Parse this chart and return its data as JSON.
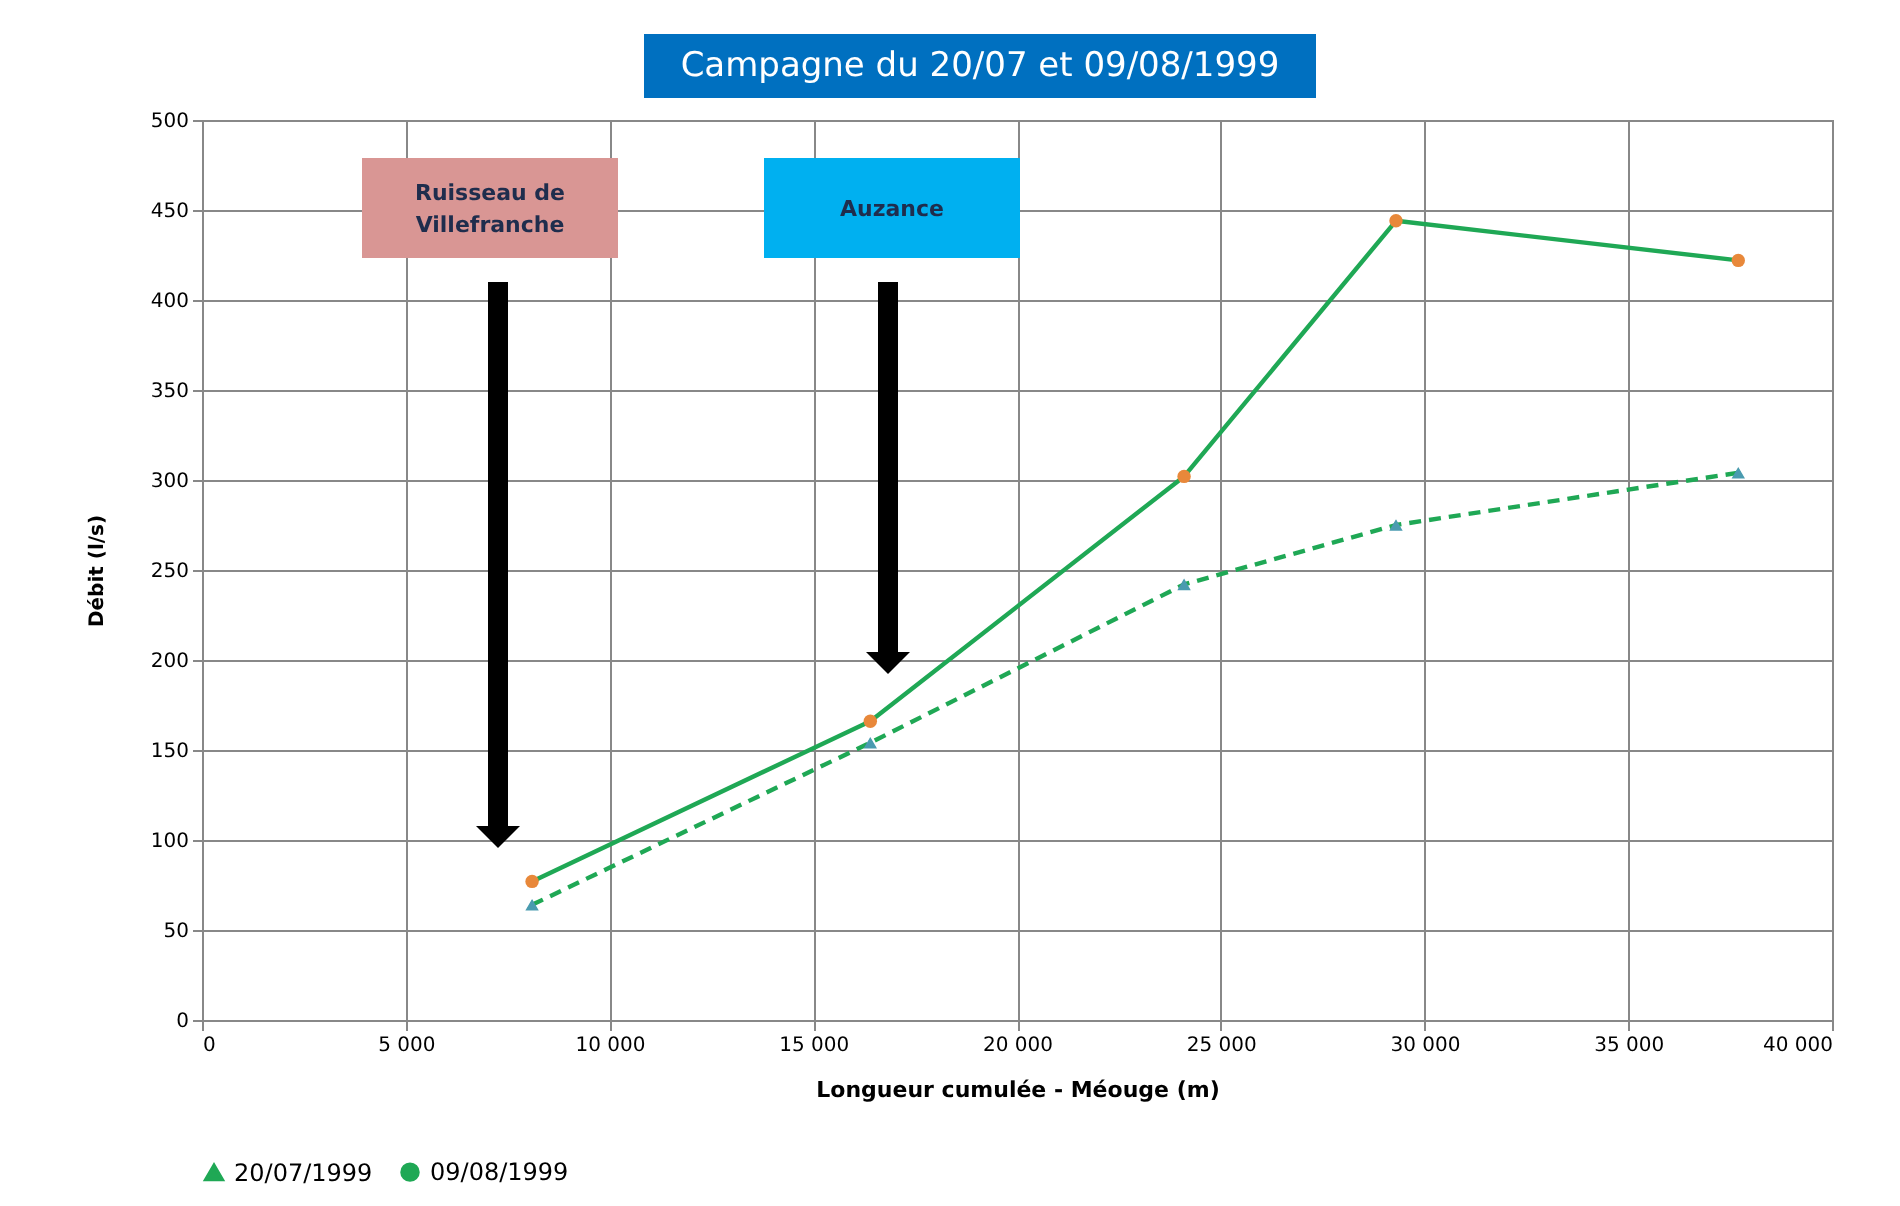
{
  "chart_data": {
    "type": "line",
    "title": "Campagne du 20/07 et 09/08/1999",
    "xlabel": "Longueur cumulée - Méouge (m)",
    "ylabel": "Débit (l/s)",
    "x": [
      8100,
      16400,
      24100,
      29300,
      37700
    ],
    "series": [
      {
        "name": "20/07/1999",
        "color": "#1fa855",
        "line_style": "dashed",
        "marker": "triangle",
        "colors": [
          "#4a9bb0",
          "#4a9bb0",
          "#4a9bb0",
          "#4a9bb0",
          "#4a9bb0"
        ],
        "values": [
          64,
          154,
          242,
          275,
          304
        ]
      },
      {
        "name": "09/08/1999",
        "color": "#1fa855",
        "line_style": "solid",
        "marker": "circle",
        "colors": [
          "#e8883a",
          "#e8883a",
          "#e8883a",
          "#e8883a",
          "#e8883a"
        ],
        "values": [
          77,
          166,
          302,
          444,
          422
        ]
      }
    ],
    "xlim": [
      0,
      40000
    ],
    "xticks": [
      0,
      {
        "value": 5000,
        "label": "5 000"
      },
      {
        "value": 10000,
        "label": "10 000"
      },
      {
        "value": 15000,
        "label": "15 000"
      },
      {
        "value": 20000,
        "label": "20 000"
      },
      {
        "value": 25000,
        "label": "25 000"
      },
      {
        "value": 30000,
        "label": "30 000"
      },
      {
        "value": 35000,
        "label": "35 000"
      },
      {
        "value": 40000,
        "label": "40 000"
      }
    ],
    "ylim": [
      0,
      500
    ],
    "yticks": [
      0,
      50,
      100,
      150,
      200,
      250,
      300,
      350,
      400,
      450,
      500
    ],
    "grid": true,
    "legend": "bottom",
    "annotations": [
      "Ruisseau de Villefranche",
      "Auzance"
    ]
  }
}
